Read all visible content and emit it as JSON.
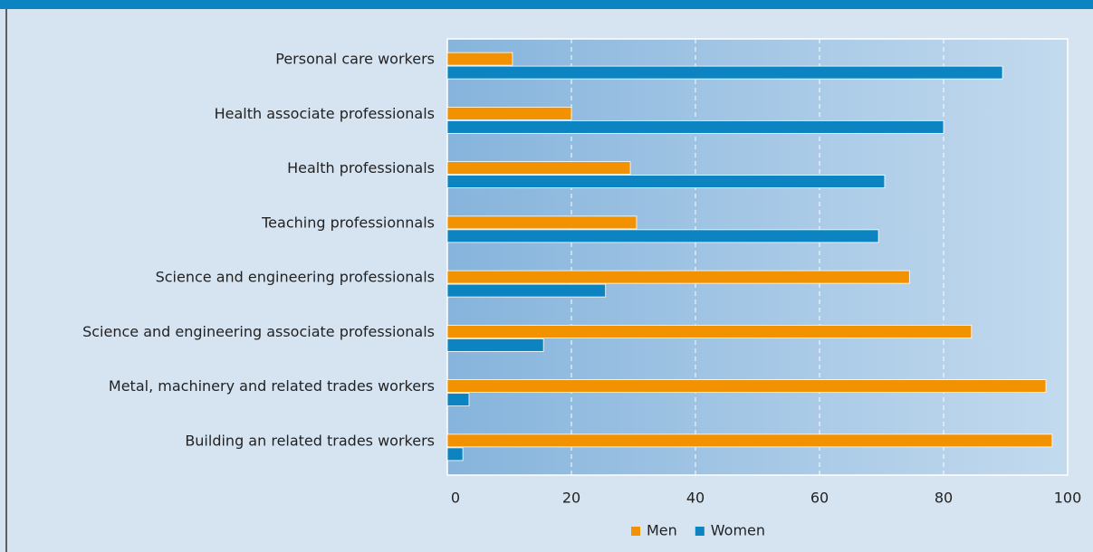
{
  "chart_data": {
    "type": "bar",
    "orientation": "horizontal",
    "categories": [
      "Personal care workers",
      "Health associate professionals",
      "Health professionals",
      "Teaching professionnals",
      "Science and engineering professionals",
      "Science and engineering associate professionals",
      "Metal, machinery and related trades workers",
      "Building an related trades workers"
    ],
    "series": [
      {
        "name": "Men",
        "color": "#f39200",
        "values": [
          10.5,
          20,
          29.5,
          30.5,
          74.5,
          84.5,
          96.5,
          97.5
        ]
      },
      {
        "name": "Women",
        "color": "#0b84c1",
        "values": [
          89.5,
          80,
          70.5,
          69.5,
          25.5,
          15.5,
          3.5,
          2.5
        ]
      }
    ],
    "xlim": [
      0,
      100
    ],
    "xticks": [
      0,
      20,
      40,
      60,
      80,
      100
    ],
    "grid": true,
    "legend": "bottom"
  }
}
